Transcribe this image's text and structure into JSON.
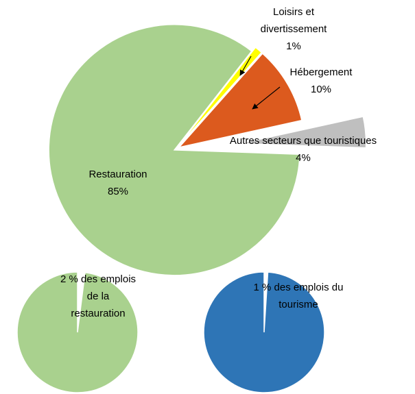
{
  "chart_data": [
    {
      "type": "pie",
      "categories": [
        "Restauration",
        "Loisirs et divertissement",
        "Hébergement",
        "Autres secteurs que touristiques"
      ],
      "values": [
        85,
        1,
        10,
        4
      ],
      "value_labels": [
        "85%",
        "1%",
        "10%",
        "4%"
      ],
      "colors": [
        "#a9d18e",
        "#ffff00",
        "#dc5a1e",
        "#bfbfbf"
      ]
    },
    {
      "type": "pie",
      "categories": [
        "2 % des emplois de la restauration",
        null
      ],
      "values": [
        2,
        98
      ],
      "colors": [
        "#ffffff",
        "#a9d18e"
      ]
    },
    {
      "type": "pie",
      "categories": [
        "1 % des emplois du tourisme",
        null
      ],
      "values": [
        1,
        99
      ],
      "colors": [
        "#ffffff",
        "#2e75b6"
      ]
    }
  ]
}
